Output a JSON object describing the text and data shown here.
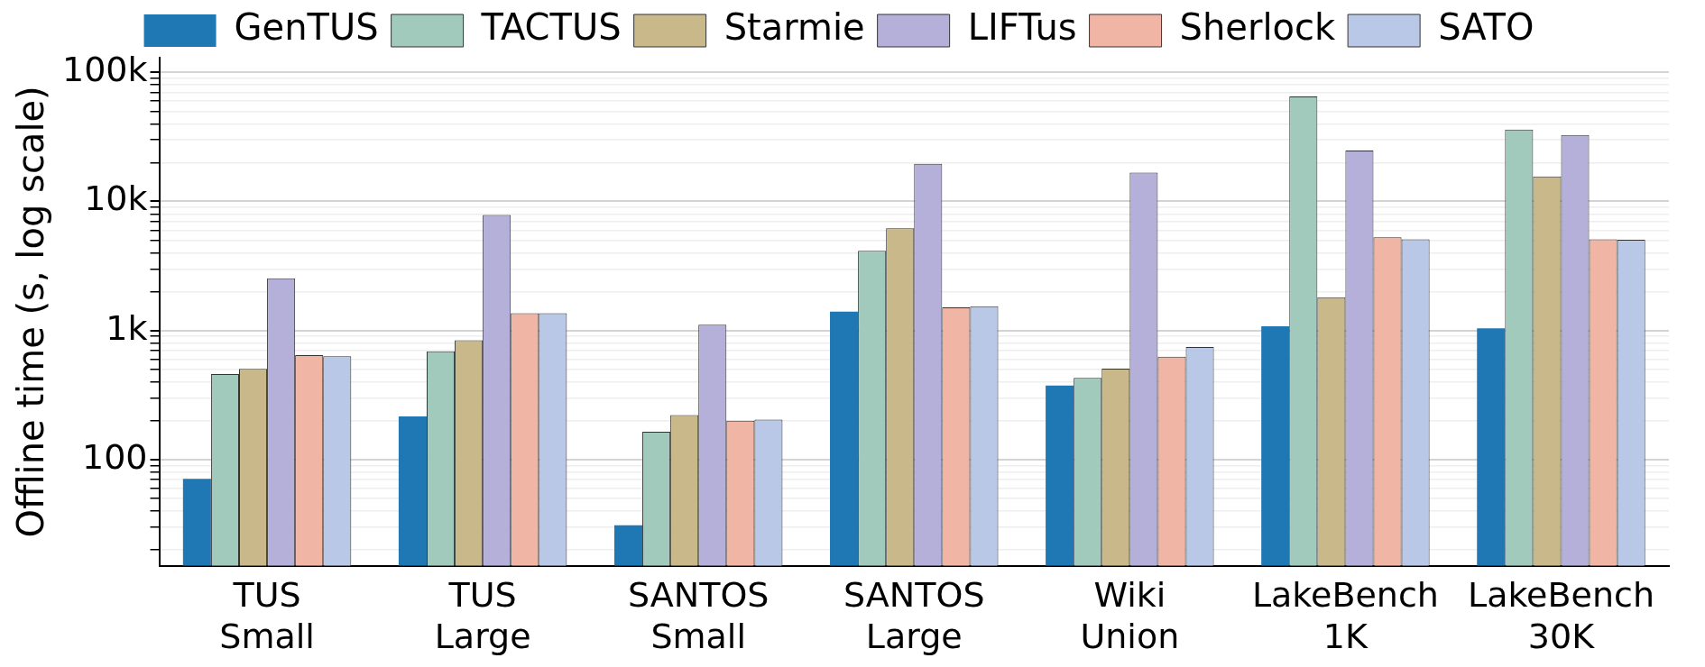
{
  "chart_data": {
    "type": "bar",
    "ylabel": "Offline time (s, log scale)",
    "categories": [
      "TUS Small",
      "TUS Large",
      "SANTOS Small",
      "SANTOS Large",
      "Wiki Union",
      "LakeBench 1K",
      "LakeBench 30K"
    ],
    "series": [
      {
        "name": "GenTUS",
        "color": "#1f77b4",
        "values": [
          71,
          216,
          31,
          1400,
          375,
          1080,
          1040
        ]
      },
      {
        "name": "TACTUS",
        "color": "#a1c9bc",
        "values": [
          460,
          690,
          164,
          4150,
          430,
          65000,
          36000
        ]
      },
      {
        "name": "Starmie",
        "color": "#c8b88a",
        "values": [
          505,
          840,
          221,
          6200,
          506,
          1810,
          15600
        ]
      },
      {
        "name": "LIFTus",
        "color": "#b5b0d9",
        "values": [
          2540,
          7850,
          1110,
          19600,
          16700,
          24800,
          32800
        ]
      },
      {
        "name": "Sherlock",
        "color": "#f0b5a5",
        "values": [
          645,
          1360,
          200,
          1510,
          627,
          5280,
          5090
        ]
      },
      {
        "name": "SATO",
        "color": "#b8c8e6",
        "values": [
          632,
          1360,
          204,
          1540,
          745,
          5090,
          5040
        ]
      }
    ],
    "log": true,
    "ylim": [
      15,
      130000
    ],
    "yticks": [
      {
        "value": 20,
        "label": null
      },
      {
        "value": 30,
        "label": null
      },
      {
        "value": 40,
        "label": null
      },
      {
        "value": 50,
        "label": null
      },
      {
        "value": 60,
        "label": null
      },
      {
        "value": 70,
        "label": null
      },
      {
        "value": 80,
        "label": null
      },
      {
        "value": 90,
        "label": null
      },
      {
        "value": 100,
        "label": "100"
      },
      {
        "value": 200,
        "label": null
      },
      {
        "value": 300,
        "label": null
      },
      {
        "value": 400,
        "label": null
      },
      {
        "value": 500,
        "label": null
      },
      {
        "value": 600,
        "label": null
      },
      {
        "value": 700,
        "label": null
      },
      {
        "value": 800,
        "label": null
      },
      {
        "value": 900,
        "label": null
      },
      {
        "value": 1000,
        "label": "1k"
      },
      {
        "value": 2000,
        "label": null
      },
      {
        "value": 3000,
        "label": null
      },
      {
        "value": 4000,
        "label": null
      },
      {
        "value": 5000,
        "label": null
      },
      {
        "value": 6000,
        "label": null
      },
      {
        "value": 7000,
        "label": null
      },
      {
        "value": 8000,
        "label": null
      },
      {
        "value": 9000,
        "label": null
      },
      {
        "value": 10000,
        "label": "10k"
      },
      {
        "value": 20000,
        "label": null
      },
      {
        "value": 30000,
        "label": null
      },
      {
        "value": 40000,
        "label": null
      },
      {
        "value": 50000,
        "label": null
      },
      {
        "value": 60000,
        "label": null
      },
      {
        "value": 70000,
        "label": null
      },
      {
        "value": 80000,
        "label": null
      },
      {
        "value": 90000,
        "label": null
      },
      {
        "value": 100000,
        "label": "100k"
      }
    ],
    "grid": "y",
    "legend": "top"
  }
}
